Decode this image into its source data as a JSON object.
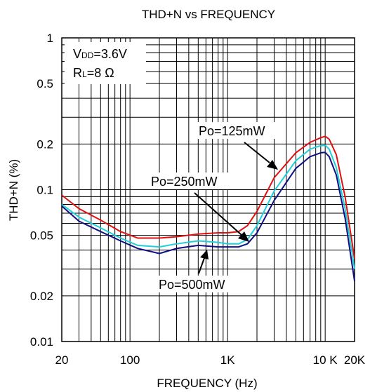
{
  "chart_data": {
    "type": "line",
    "title": "THD+N vs FREQUENCY",
    "xlabel": "FREQUENCY (Hz)",
    "ylabel": "THD+N (%)",
    "x_scale": "log",
    "y_scale": "log",
    "xlim": [
      20,
      20000
    ],
    "ylim": [
      0.01,
      1
    ],
    "grid": true,
    "x_ticks": [
      {
        "value": 20,
        "label": "20"
      },
      {
        "value": 100,
        "label": "100"
      },
      {
        "value": 1000,
        "label": "1K"
      },
      {
        "value": 10000,
        "label": "10 K"
      },
      {
        "value": 20000,
        "label": "20K"
      }
    ],
    "y_ticks": [
      {
        "value": 1,
        "label": "1"
      },
      {
        "value": 0.5,
        "label": "0.5"
      },
      {
        "value": 0.2,
        "label": "0.2"
      },
      {
        "value": 0.1,
        "label": "0.1"
      },
      {
        "value": 0.05,
        "label": "0.05"
      },
      {
        "value": 0.02,
        "label": "0.02"
      },
      {
        "value": 0.01,
        "label": "0.01"
      }
    ],
    "conditions": {
      "vdd_main": "V",
      "vdd_sub": "DD",
      "vdd_value": "=3.6V",
      "rl_main": "R",
      "rl_sub": "L",
      "rl_value": "=8 Ω"
    },
    "series": [
      {
        "name": "Po=125mW",
        "color": "#e01010",
        "x": [
          20,
          30,
          50,
          80,
          120,
          200,
          300,
          500,
          800,
          1000,
          1300,
          1600,
          2000,
          3000,
          5000,
          7000,
          9000,
          10000,
          11000,
          13000,
          16000,
          20000
        ],
        "y": [
          0.092,
          0.075,
          0.063,
          0.053,
          0.048,
          0.048,
          0.049,
          0.051,
          0.052,
          0.052,
          0.053,
          0.058,
          0.072,
          0.12,
          0.175,
          0.205,
          0.22,
          0.225,
          0.215,
          0.17,
          0.09,
          0.035
        ]
      },
      {
        "name": "",
        "color": "#20d0d8",
        "x": [
          20,
          30,
          50,
          80,
          120,
          200,
          300,
          500,
          800,
          1000,
          1300,
          1600,
          2000,
          3000,
          5000,
          7000,
          9000,
          10000,
          11000,
          13000,
          16000,
          20000
        ],
        "y": [
          0.08,
          0.066,
          0.056,
          0.048,
          0.043,
          0.042,
          0.044,
          0.046,
          0.045,
          0.044,
          0.044,
          0.047,
          0.058,
          0.098,
          0.155,
          0.185,
          0.195,
          0.196,
          0.185,
          0.14,
          0.075,
          0.03
        ]
      },
      {
        "name": "",
        "color": "#101080",
        "x": [
          20,
          30,
          50,
          80,
          120,
          200,
          300,
          500,
          800,
          1000,
          1300,
          1600,
          2000,
          3000,
          5000,
          7000,
          9000,
          10000,
          11000,
          13000,
          16000,
          20000
        ],
        "y": [
          0.078,
          0.062,
          0.053,
          0.046,
          0.041,
          0.038,
          0.041,
          0.043,
          0.042,
          0.042,
          0.042,
          0.044,
          0.052,
          0.085,
          0.138,
          0.165,
          0.175,
          0.176,
          0.165,
          0.125,
          0.065,
          0.025
        ]
      }
    ],
    "annotations": [
      {
        "label": "Po=125mW",
        "point_x": 3000,
        "point_y": 0.13
      },
      {
        "label": "Po=250mW",
        "point_x": 1400,
        "point_y": 0.046
      },
      {
        "label": "Po=500mW",
        "point_x": 500,
        "point_y": 0.043
      }
    ]
  }
}
